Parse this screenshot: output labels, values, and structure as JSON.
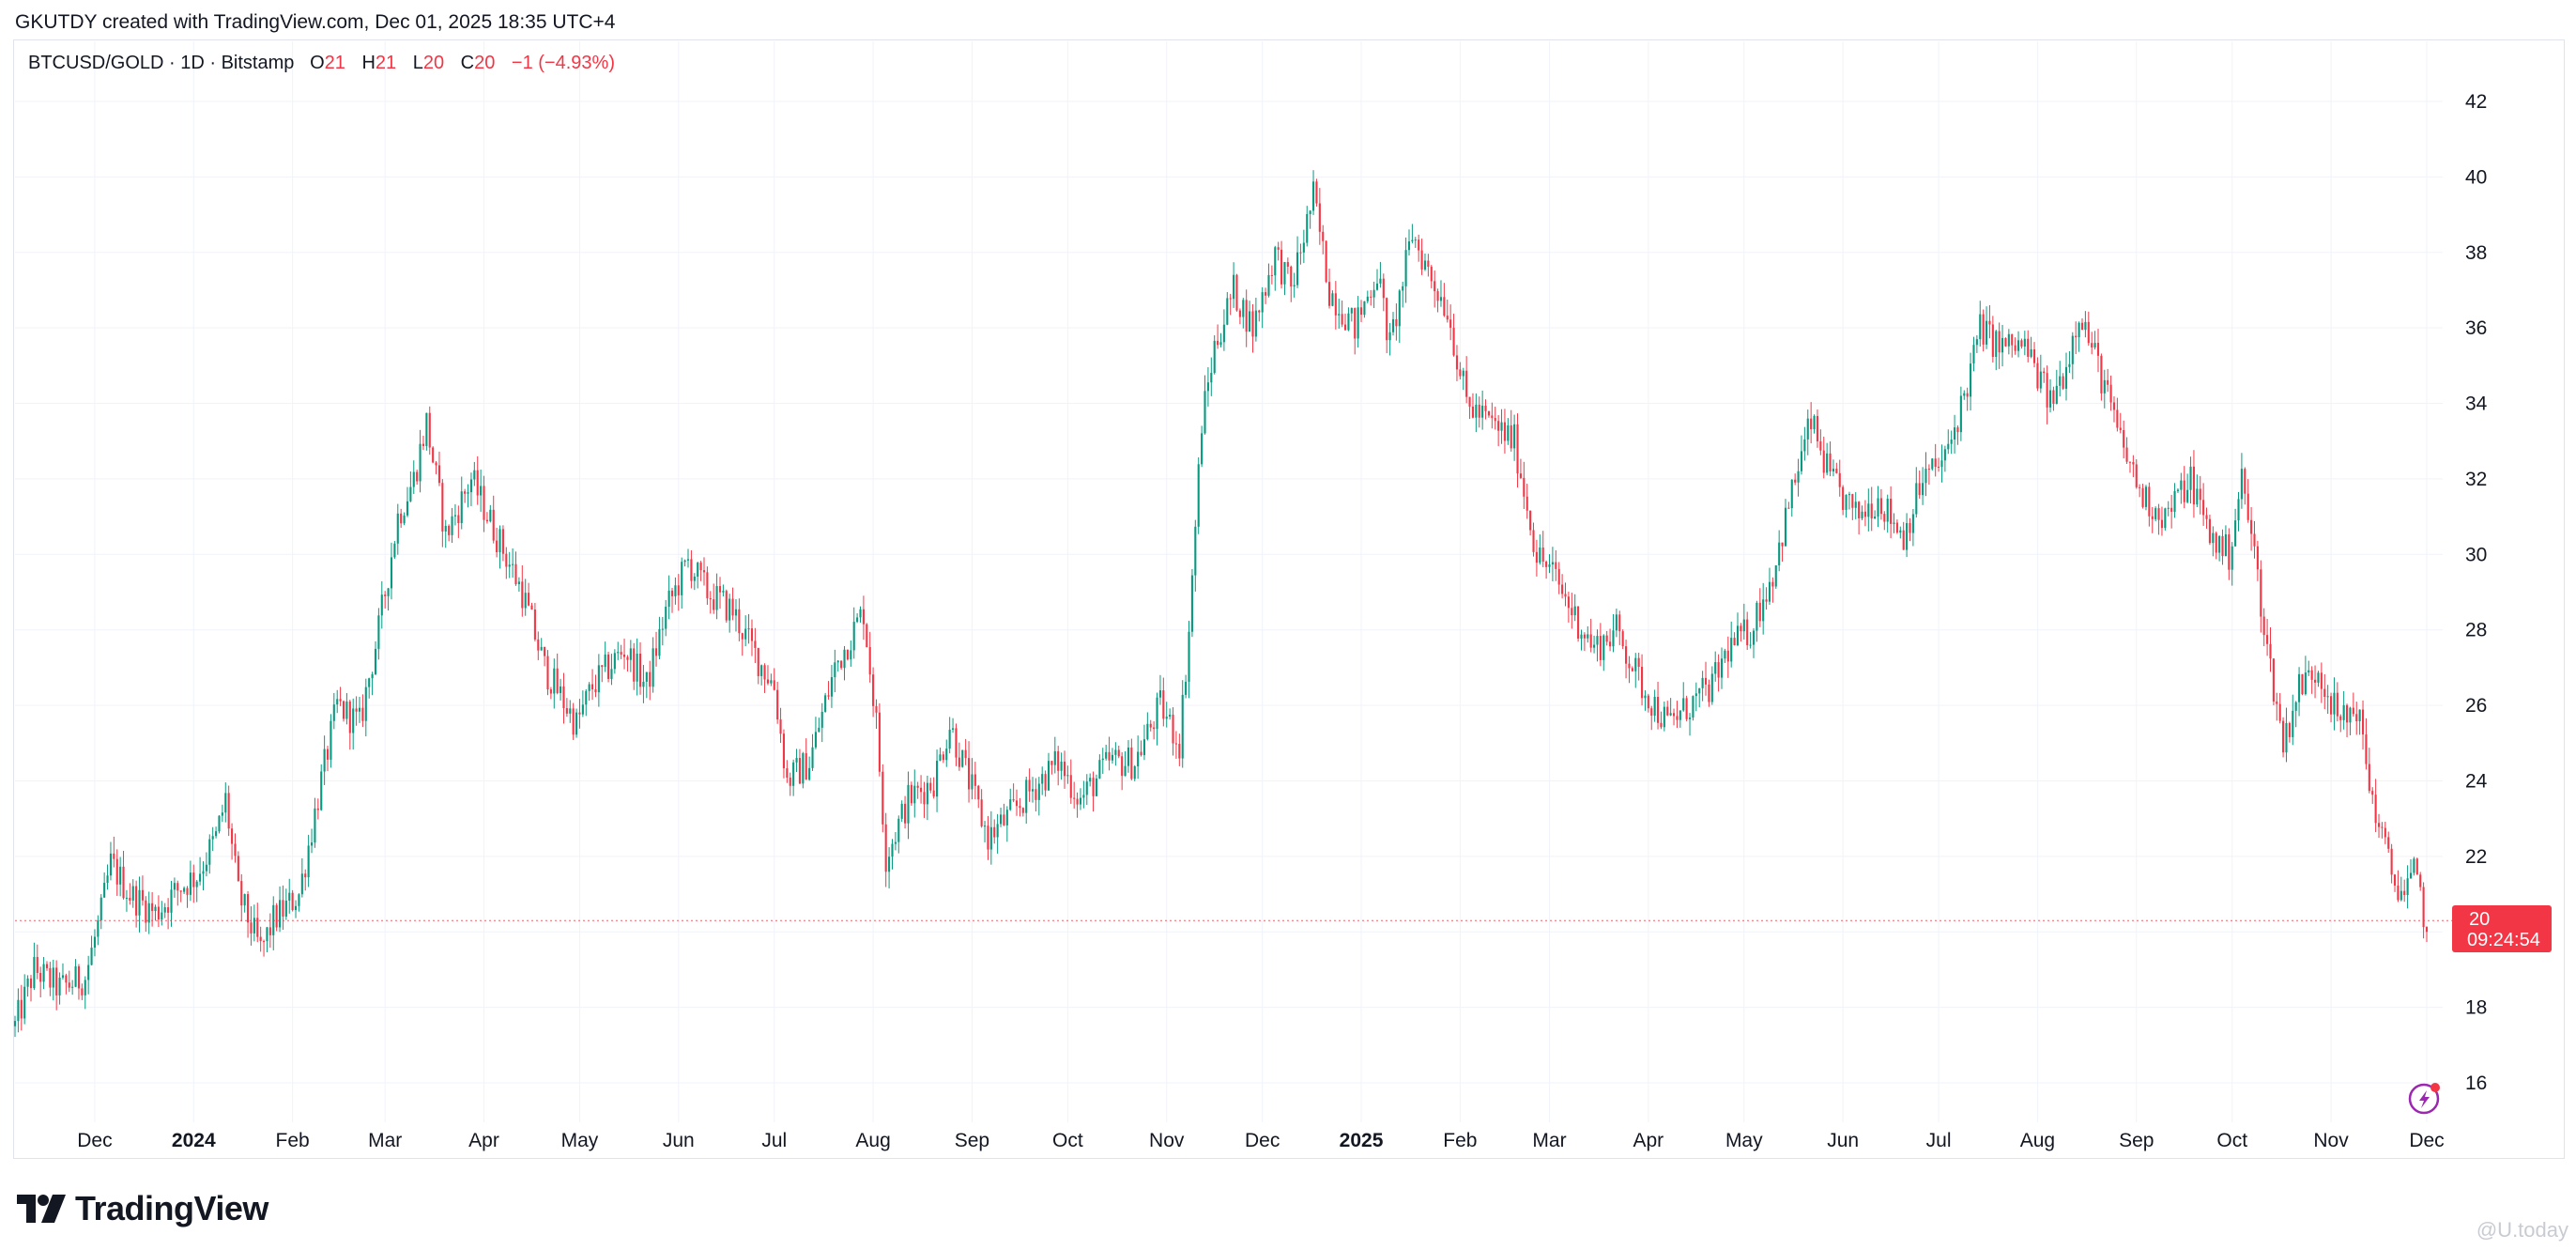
{
  "header": {
    "caption": "GKUTDY created with TradingView.com, Dec 01, 2025 18:35 UTC+4"
  },
  "legend": {
    "symbol": "BTCUSD/GOLD · 1D · Bitstamp",
    "o_label": "O",
    "o_value": "21",
    "h_label": "H",
    "h_value": "21",
    "l_label": "L",
    "l_value": "20",
    "c_label": "C",
    "c_value": "20",
    "change": "−1 (−4.93%)"
  },
  "price_tag": {
    "price": "20",
    "countdown": "09:24:54"
  },
  "brand": {
    "logo_text": "TradingView"
  },
  "watermark": "@U.today",
  "colors": {
    "up": "#089981",
    "down": "#f23645",
    "grid": "#f0f3fa",
    "text": "#131722"
  },
  "chart_data": {
    "type": "candlestick",
    "title": "",
    "symbol": "BTCUSD/GOLD",
    "interval": "1D",
    "exchange": "Bitstamp",
    "ylim": [
      15,
      43
    ],
    "y_ticks": [
      16,
      18,
      20,
      22,
      24,
      26,
      28,
      30,
      32,
      34,
      36,
      38,
      40,
      42
    ],
    "x_ticks": [
      {
        "label": "Dec",
        "date": "2023-12-01",
        "bold": false
      },
      {
        "label": "2024",
        "date": "2024-01-01",
        "bold": true
      },
      {
        "label": "Feb",
        "date": "2024-02-01",
        "bold": false
      },
      {
        "label": "Mar",
        "date": "2024-03-01",
        "bold": false
      },
      {
        "label": "Apr",
        "date": "2024-04-01",
        "bold": false
      },
      {
        "label": "May",
        "date": "2024-05-01",
        "bold": false
      },
      {
        "label": "Jun",
        "date": "2024-06-01",
        "bold": false
      },
      {
        "label": "Jul",
        "date": "2024-07-01",
        "bold": false
      },
      {
        "label": "Aug",
        "date": "2024-08-01",
        "bold": false
      },
      {
        "label": "Sep",
        "date": "2024-09-01",
        "bold": false
      },
      {
        "label": "Oct",
        "date": "2024-10-01",
        "bold": false
      },
      {
        "label": "Nov",
        "date": "2024-11-01",
        "bold": false
      },
      {
        "label": "Dec",
        "date": "2024-12-01",
        "bold": false
      },
      {
        "label": "2025",
        "date": "2025-01-01",
        "bold": true
      },
      {
        "label": "Feb",
        "date": "2025-02-01",
        "bold": false
      },
      {
        "label": "Mar",
        "date": "2025-03-01",
        "bold": false
      },
      {
        "label": "Apr",
        "date": "2025-04-01",
        "bold": false
      },
      {
        "label": "May",
        "date": "2025-05-01",
        "bold": false
      },
      {
        "label": "Jun",
        "date": "2025-06-01",
        "bold": false
      },
      {
        "label": "Jul",
        "date": "2025-07-01",
        "bold": false
      },
      {
        "label": "Aug",
        "date": "2025-08-01",
        "bold": false
      },
      {
        "label": "Sep",
        "date": "2025-09-01",
        "bold": false
      },
      {
        "label": "Oct",
        "date": "2025-10-01",
        "bold": false
      },
      {
        "label": "Nov",
        "date": "2025-11-01",
        "bold": false
      },
      {
        "label": "Dec",
        "date": "2025-12-01",
        "bold": false
      }
    ],
    "x_range": [
      "2023-11-06",
      "2025-12-01"
    ],
    "last_price": 20,
    "grid": true,
    "close_path": [
      [
        "2023-11-06",
        17.5
      ],
      [
        "2023-11-12",
        19.0
      ],
      [
        "2023-11-20",
        18.5
      ],
      [
        "2023-11-28",
        18.8
      ],
      [
        "2023-12-03",
        20.5
      ],
      [
        "2023-12-06",
        21.8
      ],
      [
        "2023-12-12",
        21.0
      ],
      [
        "2023-12-20",
        20.5
      ],
      [
        "2023-12-28",
        21.2
      ],
      [
        "2024-01-02",
        21.5
      ],
      [
        "2024-01-08",
        22.5
      ],
      [
        "2024-01-11",
        23.5
      ],
      [
        "2024-01-15",
        21.0
      ],
      [
        "2024-01-22",
        19.5
      ],
      [
        "2024-01-26",
        20.3
      ],
      [
        "2024-02-03",
        21.0
      ],
      [
        "2024-02-10",
        24.0
      ],
      [
        "2024-02-15",
        26.0
      ],
      [
        "2024-02-22",
        25.5
      ],
      [
        "2024-02-28",
        28.0
      ],
      [
        "2024-03-05",
        31.0
      ],
      [
        "2024-03-10",
        32.0
      ],
      [
        "2024-03-14",
        33.5
      ],
      [
        "2024-03-20",
        30.5
      ],
      [
        "2024-03-28",
        32.0
      ],
      [
        "2024-04-05",
        30.5
      ],
      [
        "2024-04-13",
        29.0
      ],
      [
        "2024-04-20",
        27.0
      ],
      [
        "2024-04-30",
        25.5
      ],
      [
        "2024-05-05",
        26.5
      ],
      [
        "2024-05-15",
        27.5
      ],
      [
        "2024-05-22",
        26.5
      ],
      [
        "2024-05-28",
        28.5
      ],
      [
        "2024-06-04",
        29.8
      ],
      [
        "2024-06-10",
        29.0
      ],
      [
        "2024-06-18",
        28.5
      ],
      [
        "2024-06-24",
        27.5
      ],
      [
        "2024-07-01",
        26.5
      ],
      [
        "2024-07-05",
        24.0
      ],
      [
        "2024-07-12",
        24.5
      ],
      [
        "2024-07-20",
        27.0
      ],
      [
        "2024-07-29",
        28.5
      ],
      [
        "2024-08-02",
        25.5
      ],
      [
        "2024-08-05",
        22.0
      ],
      [
        "2024-08-12",
        23.5
      ],
      [
        "2024-08-20",
        24.0
      ],
      [
        "2024-08-25",
        25.5
      ],
      [
        "2024-09-06",
        22.5
      ],
      [
        "2024-09-12",
        23.0
      ],
      [
        "2024-09-20",
        23.8
      ],
      [
        "2024-09-28",
        24.5
      ],
      [
        "2024-10-05",
        23.5
      ],
      [
        "2024-10-14",
        24.5
      ],
      [
        "2024-10-22",
        24.5
      ],
      [
        "2024-10-30",
        26.0
      ],
      [
        "2024-11-05",
        25.0
      ],
      [
        "2024-11-08",
        28.0
      ],
      [
        "2024-11-12",
        33.5
      ],
      [
        "2024-11-16",
        35.5
      ],
      [
        "2024-11-22",
        37.0
      ],
      [
        "2024-11-28",
        36.0
      ],
      [
        "2024-12-05",
        38.0
      ],
      [
        "2024-12-10",
        37.0
      ],
      [
        "2024-12-17",
        39.5
      ],
      [
        "2024-12-22",
        37.0
      ],
      [
        "2024-12-30",
        36.0
      ],
      [
        "2025-01-06",
        37.5
      ],
      [
        "2025-01-10",
        35.5
      ],
      [
        "2025-01-17",
        38.5
      ],
      [
        "2025-01-22",
        37.5
      ],
      [
        "2025-01-28",
        36.5
      ],
      [
        "2025-02-03",
        34.0
      ],
      [
        "2025-02-10",
        33.5
      ],
      [
        "2025-02-18",
        33.0
      ],
      [
        "2025-02-25",
        30.0
      ],
      [
        "2025-03-02",
        29.5
      ],
      [
        "2025-03-08",
        28.5
      ],
      [
        "2025-03-15",
        27.5
      ],
      [
        "2025-03-22",
        28.0
      ],
      [
        "2025-03-30",
        26.5
      ],
      [
        "2025-04-07",
        25.5
      ],
      [
        "2025-04-14",
        26.0
      ],
      [
        "2025-04-21",
        26.5
      ],
      [
        "2025-04-26",
        27.5
      ],
      [
        "2025-05-03",
        28.0
      ],
      [
        "2025-05-10",
        29.5
      ],
      [
        "2025-05-17",
        32.0
      ],
      [
        "2025-05-22",
        33.5
      ],
      [
        "2025-05-28",
        32.0
      ],
      [
        "2025-06-05",
        31.0
      ],
      [
        "2025-06-12",
        31.5
      ],
      [
        "2025-06-20",
        30.5
      ],
      [
        "2025-06-26",
        32.0
      ],
      [
        "2025-07-03",
        32.5
      ],
      [
        "2025-07-10",
        34.5
      ],
      [
        "2025-07-14",
        36.0
      ],
      [
        "2025-07-20",
        35.5
      ],
      [
        "2025-07-28",
        35.5
      ],
      [
        "2025-08-05",
        34.0
      ],
      [
        "2025-08-10",
        35.0
      ],
      [
        "2025-08-14",
        36.5
      ],
      [
        "2025-08-20",
        35.0
      ],
      [
        "2025-08-27",
        33.0
      ],
      [
        "2025-09-03",
        31.5
      ],
      [
        "2025-09-10",
        31.0
      ],
      [
        "2025-09-18",
        32.0
      ],
      [
        "2025-09-24",
        30.5
      ],
      [
        "2025-09-30",
        30.0
      ],
      [
        "2025-10-04",
        32.0
      ],
      [
        "2025-10-08",
        30.0
      ],
      [
        "2025-10-12",
        27.5
      ],
      [
        "2025-10-17",
        25.0
      ],
      [
        "2025-10-22",
        26.5
      ],
      [
        "2025-10-28",
        27.0
      ],
      [
        "2025-11-04",
        25.5
      ],
      [
        "2025-11-09",
        26.0
      ],
      [
        "2025-11-14",
        23.5
      ],
      [
        "2025-11-20",
        21.5
      ],
      [
        "2025-11-24",
        21.0
      ],
      [
        "2025-11-27",
        21.5
      ],
      [
        "2025-11-29",
        21.0
      ],
      [
        "2025-12-01",
        20.0
      ]
    ]
  }
}
